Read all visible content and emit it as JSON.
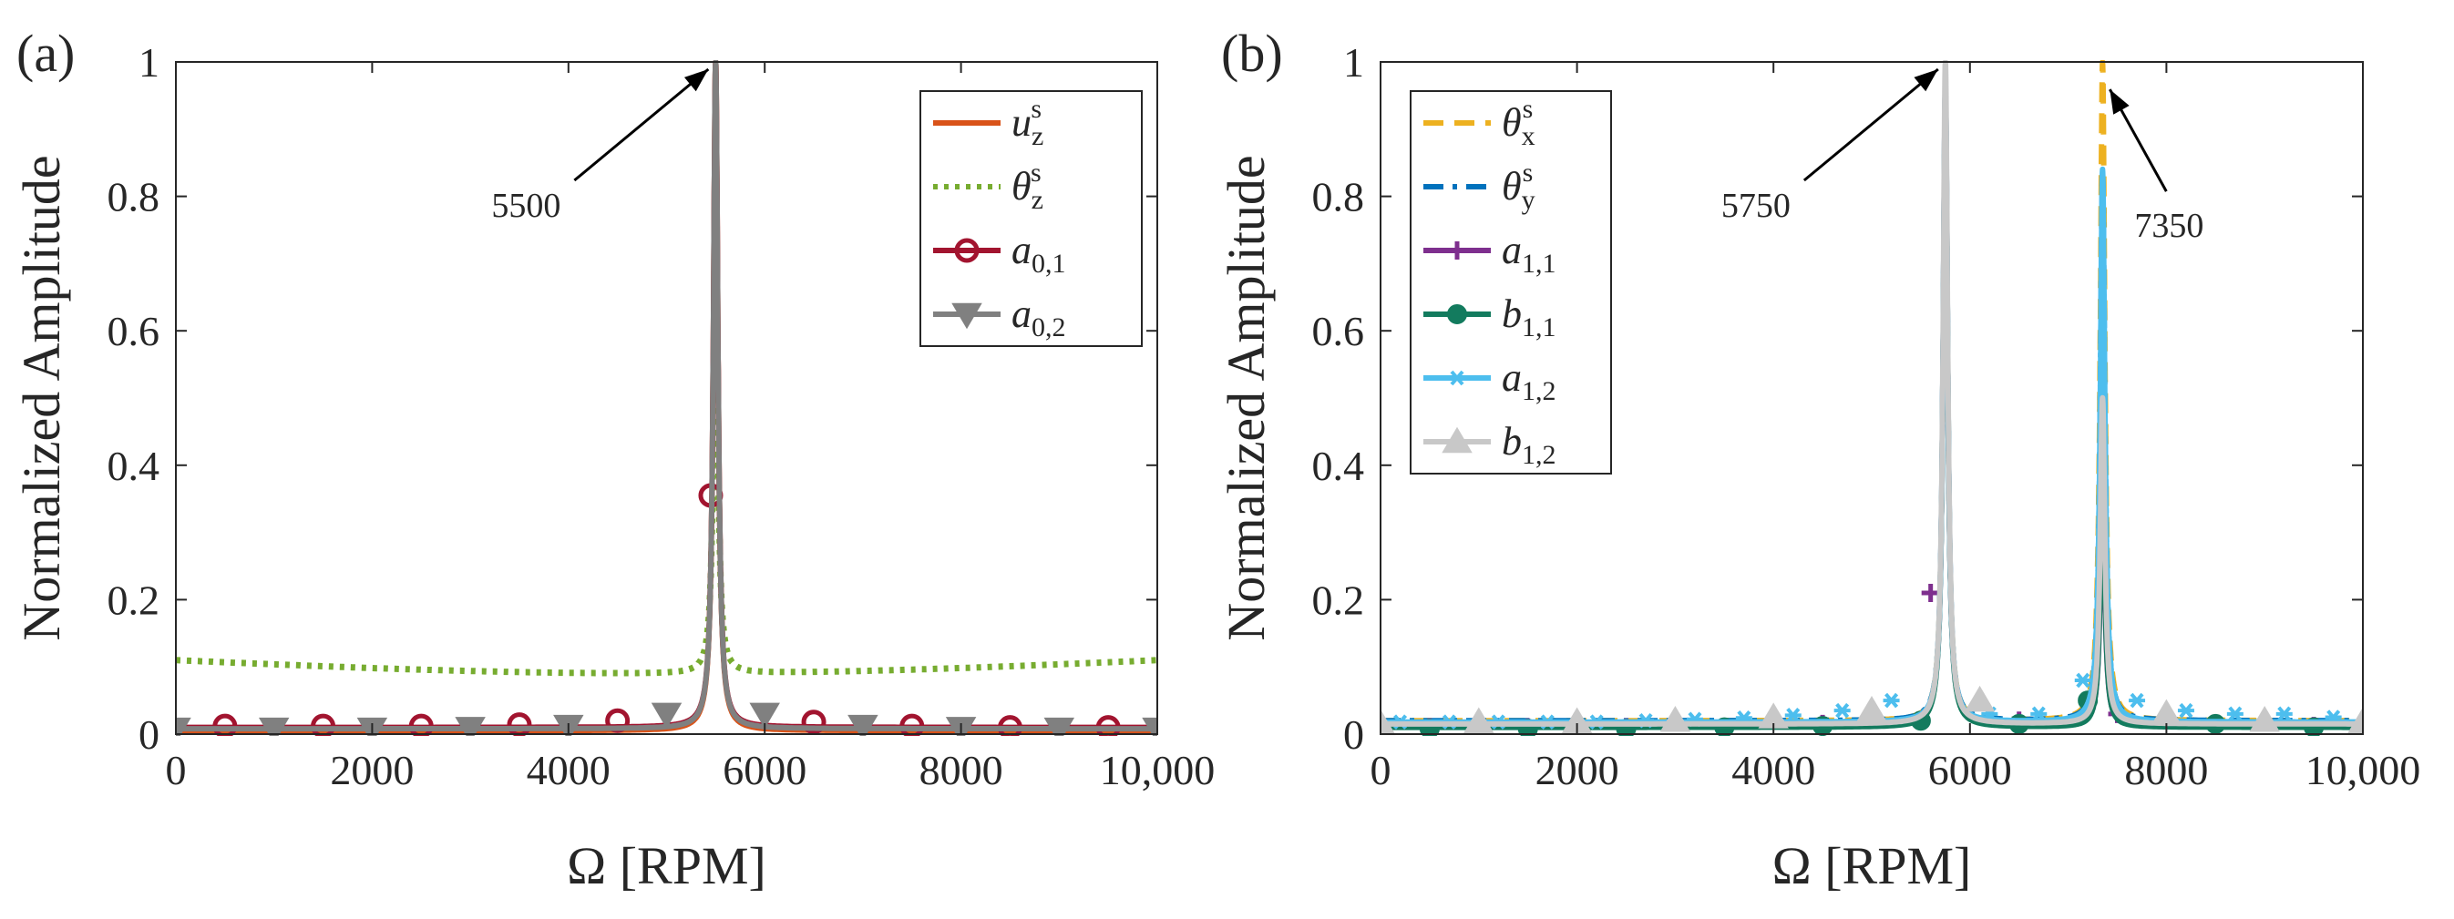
{
  "chart_data": [
    {
      "type": "line",
      "panel_label": "(a)",
      "xlabel": "Ω [RPM]",
      "ylabel": "Normalized Amplitude",
      "xlim": [
        0,
        10000
      ],
      "ylim": [
        0,
        1
      ],
      "xticks": [
        0,
        2000,
        4000,
        6000,
        8000,
        10000
      ],
      "xtick_labels": [
        "0",
        "2000",
        "4000",
        "6000",
        "8000",
        "10,000"
      ],
      "yticks": [
        0,
        0.2,
        0.4,
        0.6,
        0.8,
        1
      ],
      "ytick_labels": [
        "0",
        "0.2",
        "0.4",
        "0.6",
        "0.8",
        "1"
      ],
      "legend_position": "top-right",
      "series": [
        {
          "name": "u",
          "sub": "z",
          "sup": "s",
          "color": "#D95319",
          "style": "solid",
          "marker": "none",
          "peak_x": 5500,
          "peak_y": 1.0,
          "base_y": 0.005
        },
        {
          "name": "θ",
          "sub": "z",
          "sup": "s",
          "color": "#77AC30",
          "style": "dotted",
          "marker": "none",
          "peak_x": 5500,
          "peak_y": 0.72,
          "base_y": 0.11
        },
        {
          "name": "a",
          "sub": "0,1",
          "sup": "",
          "color": "#A2142F",
          "style": "solid",
          "marker": "circle",
          "peak_x": 5500,
          "peak_y": 1.0,
          "base_y": 0.01,
          "marker_points": [
            [
              500,
              0.012
            ],
            [
              1500,
              0.012
            ],
            [
              2500,
              0.012
            ],
            [
              3500,
              0.014
            ],
            [
              4500,
              0.02
            ],
            [
              5450,
              0.355
            ],
            [
              6500,
              0.018
            ],
            [
              7500,
              0.012
            ],
            [
              8500,
              0.01
            ],
            [
              9500,
              0.01
            ]
          ]
        },
        {
          "name": "a",
          "sub": "0,2",
          "sup": "",
          "color": "#808080",
          "style": "solid",
          "marker": "triangle-down",
          "peak_x": 5500,
          "peak_y": 1.0,
          "base_y": 0.008,
          "marker_points": [
            [
              0,
              0.008
            ],
            [
              1000,
              0.008
            ],
            [
              2000,
              0.008
            ],
            [
              3000,
              0.009
            ],
            [
              4000,
              0.012
            ],
            [
              5000,
              0.03
            ],
            [
              6000,
              0.03
            ],
            [
              7000,
              0.012
            ],
            [
              8000,
              0.009
            ],
            [
              9000,
              0.008
            ],
            [
              10000,
              0.008
            ]
          ]
        }
      ],
      "annotations": [
        {
          "text": "5500",
          "x": 5500,
          "y": 1.0
        }
      ]
    },
    {
      "type": "line",
      "panel_label": "(b)",
      "xlabel": "Ω [RPM]",
      "ylabel": "Normalized Amplitude",
      "xlim": [
        0,
        10000
      ],
      "ylim": [
        0,
        1
      ],
      "xticks": [
        0,
        2000,
        4000,
        6000,
        8000,
        10000
      ],
      "xtick_labels": [
        "0",
        "2000",
        "4000",
        "6000",
        "8000",
        "10,000"
      ],
      "yticks": [
        0,
        0.2,
        0.4,
        0.6,
        0.8,
        1
      ],
      "ytick_labels": [
        "0",
        "0.2",
        "0.4",
        "0.6",
        "0.8",
        "1"
      ],
      "legend_position": "top-left",
      "series": [
        {
          "name": "θ",
          "sub": "x",
          "sup": "s",
          "color": "#EDB120",
          "style": "dashed",
          "marker": "none",
          "peaks": [
            [
              5750,
              0.95
            ],
            [
              7350,
              1.0
            ]
          ],
          "base_y": 0.02
        },
        {
          "name": "θ",
          "sub": "y",
          "sup": "s",
          "color": "#0072BD",
          "style": "dashdot",
          "marker": "none",
          "peaks": [
            [
              5750,
              0.95
            ],
            [
              7350,
              0.83
            ]
          ],
          "base_y": 0.02
        },
        {
          "name": "a",
          "sub": "1,1",
          "sup": "",
          "color": "#7E2F8E",
          "style": "solid",
          "marker": "plus",
          "peaks": [
            [
              5750,
              0.96
            ],
            [
              7350,
              0.36
            ]
          ],
          "base_y": 0.012,
          "marker_points": [
            [
              500,
              0.01
            ],
            [
              1500,
              0.01
            ],
            [
              2500,
              0.01
            ],
            [
              3500,
              0.01
            ],
            [
              4500,
              0.015
            ],
            [
              5600,
              0.21
            ],
            [
              6500,
              0.02
            ],
            [
              7500,
              0.03
            ],
            [
              8500,
              0.015
            ],
            [
              9500,
              0.012
            ]
          ]
        },
        {
          "name": "b",
          "sub": "1,1",
          "sup": "",
          "color": "#137B5E",
          "style": "solid",
          "marker": "circle-filled",
          "peaks": [
            [
              5750,
              0.96
            ],
            [
              7350,
              0.38
            ]
          ],
          "base_y": 0.01,
          "marker_points": [
            [
              500,
              0.008
            ],
            [
              1500,
              0.008
            ],
            [
              2500,
              0.008
            ],
            [
              3500,
              0.01
            ],
            [
              4500,
              0.012
            ],
            [
              5500,
              0.02
            ],
            [
              6500,
              0.015
            ],
            [
              7200,
              0.05
            ],
            [
              8500,
              0.015
            ],
            [
              9500,
              0.01
            ]
          ]
        },
        {
          "name": "a",
          "sub": "1,2",
          "sup": "",
          "color": "#4DBEEE",
          "style": "solid",
          "marker": "asterisk",
          "peaks": [
            [
              5750,
              0.96
            ],
            [
              7350,
              0.84
            ]
          ],
          "base_y": 0.018,
          "marker_points": [
            [
              200,
              0.018
            ],
            [
              700,
              0.018
            ],
            [
              1200,
              0.018
            ],
            [
              1700,
              0.018
            ],
            [
              2200,
              0.018
            ],
            [
              2700,
              0.02
            ],
            [
              3200,
              0.022
            ],
            [
              3700,
              0.024
            ],
            [
              4200,
              0.028
            ],
            [
              4700,
              0.035
            ],
            [
              5200,
              0.05
            ],
            [
              6200,
              0.03
            ],
            [
              6700,
              0.03
            ],
            [
              7150,
              0.08
            ],
            [
              7700,
              0.05
            ],
            [
              8200,
              0.035
            ],
            [
              8700,
              0.03
            ],
            [
              9200,
              0.03
            ],
            [
              9700,
              0.025
            ]
          ]
        },
        {
          "name": "b",
          "sub": "1,2",
          "sup": "",
          "color": "#C8C8C8",
          "style": "solid",
          "marker": "triangle-up",
          "peaks": [
            [
              5750,
              1.0
            ],
            [
              7350,
              0.5
            ]
          ],
          "base_y": 0.015,
          "marker_points": [
            [
              0,
              0.015
            ],
            [
              1000,
              0.018
            ],
            [
              2000,
              0.018
            ],
            [
              3000,
              0.02
            ],
            [
              4000,
              0.025
            ],
            [
              5000,
              0.035
            ],
            [
              6100,
              0.05
            ],
            [
              8000,
              0.03
            ],
            [
              9000,
              0.02
            ],
            [
              10000,
              0.018
            ]
          ]
        }
      ],
      "annotations": [
        {
          "text": "5750",
          "x": 5750,
          "y": 1.0
        },
        {
          "text": "7350",
          "x": 7350,
          "y": 0.97
        }
      ]
    }
  ]
}
